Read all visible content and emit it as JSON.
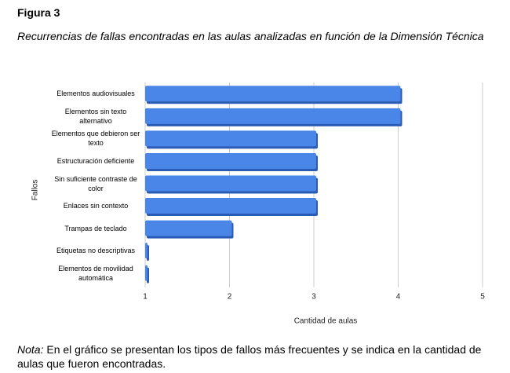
{
  "figure_label": "Figura 3",
  "caption": "Recurrencias de fallas encontradas en las aulas analizadas en función de la Dimensión Técnica",
  "chart_data": {
    "type": "bar",
    "orientation": "horizontal",
    "categories": [
      "Elementos audiovisuales",
      "Elementos sin texto alternativo",
      "Elementos que debieron ser texto",
      "Estructuración deficiente",
      "Sin suficiente contraste de color",
      "Enlaces sin contexto",
      "Trampas de teclado",
      "Etiquetas no descriptivas",
      "Elementos de movilidad automática"
    ],
    "values": [
      4,
      4,
      3,
      3,
      3,
      3,
      2,
      1,
      1
    ],
    "color": "#4a86e8",
    "xlim": [
      1,
      5
    ],
    "xticks": [
      1,
      2,
      3,
      4,
      5
    ],
    "xlabel": "Cantidad de aulas",
    "ylabel": "Fallos",
    "grid": true
  },
  "note": {
    "label": "Nota:",
    "text": "En el gráfico se presentan los tipos de fallos más frecuentes y se indica en la cantidad de aulas que fueron encontradas."
  }
}
